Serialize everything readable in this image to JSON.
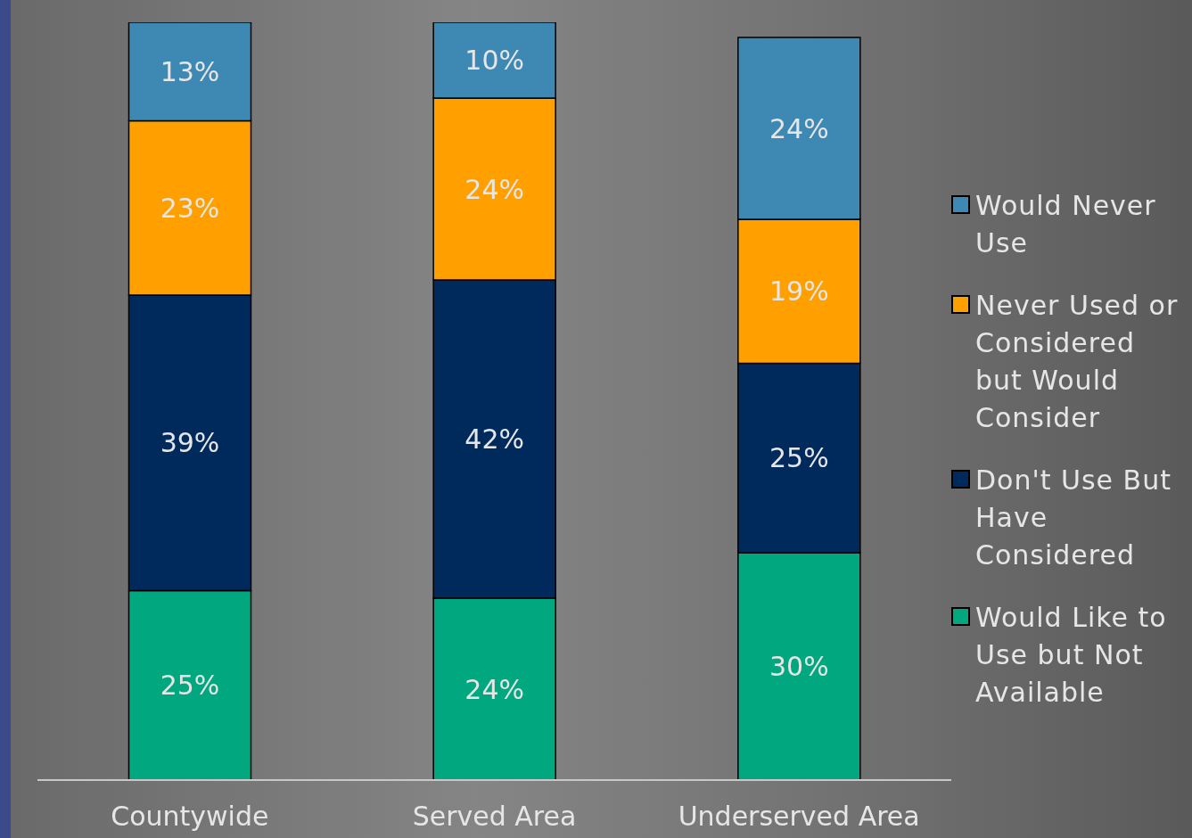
{
  "chart_data": {
    "type": "bar",
    "stacked": true,
    "categories": [
      "Countywide",
      "Served Area",
      "Underserved Area"
    ],
    "series": [
      {
        "name": "Would Like to Use but Not Available",
        "color": "#00a77f",
        "values": [
          25,
          24,
          30
        ],
        "value_labels": [
          "25%",
          "24%",
          "30%"
        ]
      },
      {
        "name": "Don't Use But Have Considered",
        "color": "#002a5c",
        "values": [
          39,
          42,
          25
        ],
        "value_labels": [
          "39%",
          "42%",
          "25%"
        ]
      },
      {
        "name": "Never Used or Considered but Would Consider",
        "color": "#ff9f00",
        "values": [
          23,
          24,
          19
        ],
        "value_labels": [
          "23%",
          "24%",
          "19%"
        ]
      },
      {
        "name": "Would Never Use",
        "color": "#3e88b4",
        "values": [
          13,
          10,
          24
        ],
        "value_labels": [
          "13%",
          "10%",
          "24%"
        ]
      }
    ],
    "ylim": [
      0,
      100
    ],
    "tick_labels": "x",
    "legend": "right"
  }
}
